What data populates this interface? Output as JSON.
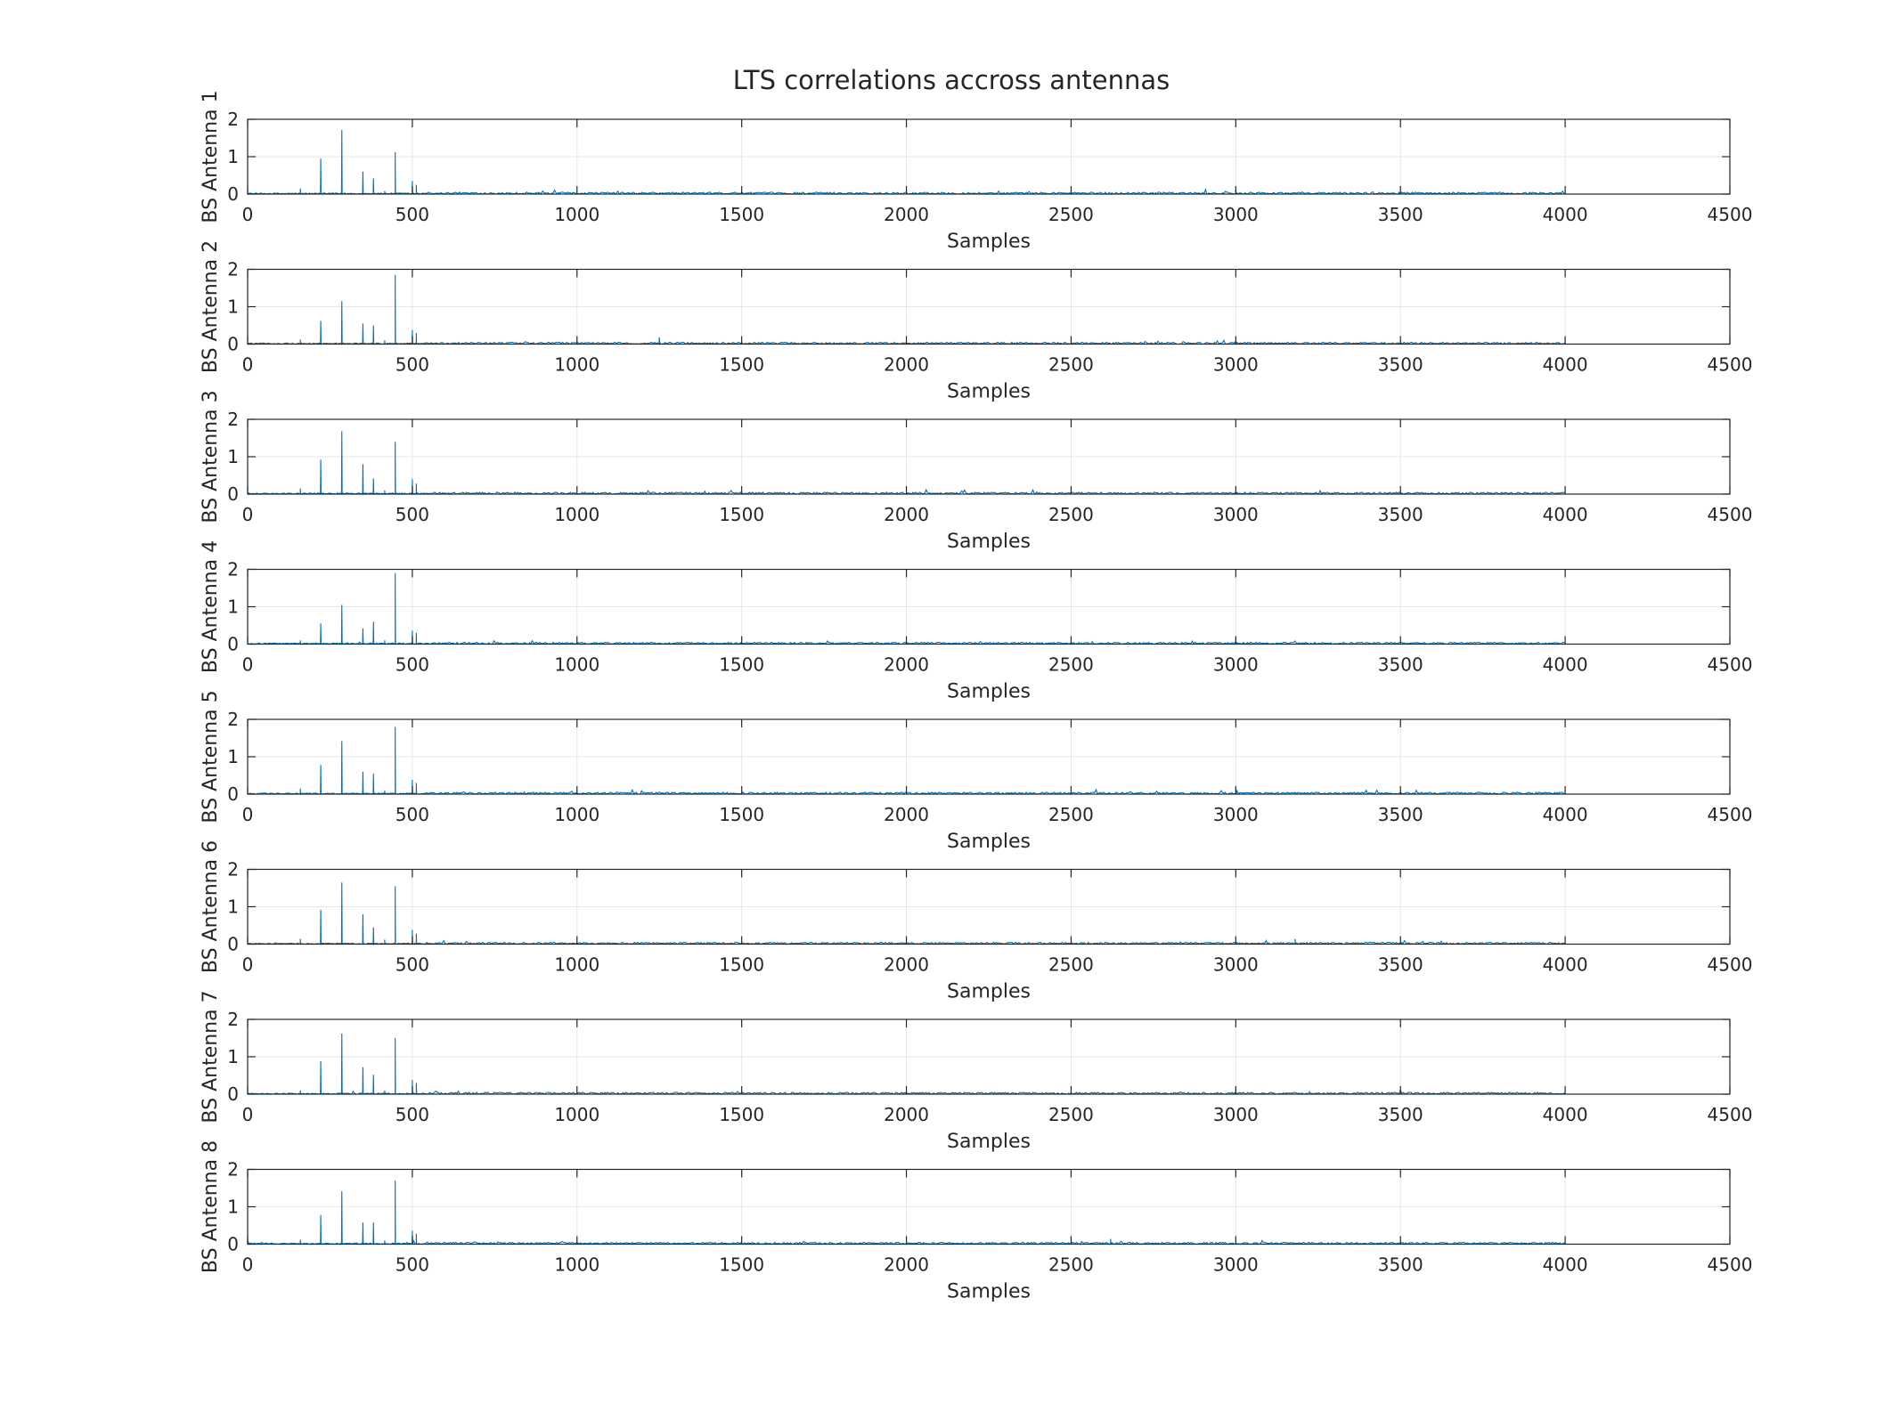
{
  "figure_title": "LTS correlations accross antennas",
  "colors": {
    "line": "#0072BD",
    "axis": "#262626",
    "grid": "#E6E6E6",
    "background": "#FFFFFF"
  },
  "chart_data": [
    {
      "type": "line",
      "xlabel": "Samples",
      "ylabel": "BS Antenna 1",
      "xlim": [
        0,
        4500
      ],
      "ylim": [
        0,
        2
      ],
      "xticks": [
        0,
        500,
        1000,
        1500,
        2000,
        2500,
        3000,
        3500,
        4000,
        4500
      ],
      "yticks": [
        0,
        1,
        2
      ],
      "grid": true,
      "series": [
        {
          "peaks": [
            [
              160,
              0.15
            ],
            [
              222,
              0.95
            ],
            [
              286,
              1.72
            ],
            [
              350,
              0.6
            ],
            [
              382,
              0.42
            ],
            [
              416,
              0.08
            ],
            [
              448,
              1.12
            ],
            [
              500,
              0.35
            ],
            [
              512,
              0.25
            ],
            [
              3000,
              0.12
            ]
          ],
          "noise_level": 0.05,
          "x_end": 4000
        }
      ]
    },
    {
      "type": "line",
      "xlabel": "Samples",
      "ylabel": "BS Antenna 2",
      "xlim": [
        0,
        4500
      ],
      "ylim": [
        0,
        2
      ],
      "xticks": [
        0,
        500,
        1000,
        1500,
        2000,
        2500,
        3000,
        3500,
        4000,
        4500
      ],
      "yticks": [
        0,
        1,
        2
      ],
      "grid": true,
      "series": [
        {
          "peaks": [
            [
              160,
              0.12
            ],
            [
              222,
              0.62
            ],
            [
              286,
              1.15
            ],
            [
              350,
              0.55
            ],
            [
              382,
              0.5
            ],
            [
              416,
              0.1
            ],
            [
              448,
              1.85
            ],
            [
              500,
              0.38
            ],
            [
              512,
              0.3
            ],
            [
              1250,
              0.18
            ],
            [
              3000,
              0.1
            ]
          ],
          "noise_level": 0.05,
          "x_end": 4000
        }
      ]
    },
    {
      "type": "line",
      "xlabel": "Samples",
      "ylabel": "BS Antenna 3",
      "xlim": [
        0,
        4500
      ],
      "ylim": [
        0,
        2
      ],
      "xticks": [
        0,
        500,
        1000,
        1500,
        2000,
        2500,
        3000,
        3500,
        4000,
        4500
      ],
      "yticks": [
        0,
        1,
        2
      ],
      "grid": true,
      "series": [
        {
          "peaks": [
            [
              160,
              0.15
            ],
            [
              222,
              0.92
            ],
            [
              286,
              1.68
            ],
            [
              350,
              0.8
            ],
            [
              382,
              0.42
            ],
            [
              416,
              0.1
            ],
            [
              448,
              1.4
            ],
            [
              500,
              0.4
            ],
            [
              512,
              0.28
            ],
            [
              3000,
              0.1
            ]
          ],
          "noise_level": 0.05,
          "x_end": 4000
        }
      ]
    },
    {
      "type": "line",
      "xlabel": "Samples",
      "ylabel": "BS Antenna 4",
      "xlim": [
        0,
        4500
      ],
      "ylim": [
        0,
        2
      ],
      "xticks": [
        0,
        500,
        1000,
        1500,
        2000,
        2500,
        3000,
        3500,
        4000,
        4500
      ],
      "yticks": [
        0,
        1,
        2
      ],
      "grid": true,
      "series": [
        {
          "peaks": [
            [
              160,
              0.1
            ],
            [
              222,
              0.55
            ],
            [
              286,
              1.05
            ],
            [
              350,
              0.42
            ],
            [
              382,
              0.6
            ],
            [
              416,
              0.1
            ],
            [
              448,
              1.9
            ],
            [
              500,
              0.36
            ],
            [
              512,
              0.3
            ],
            [
              3000,
              0.12
            ]
          ],
          "noise_level": 0.05,
          "x_end": 4000
        }
      ]
    },
    {
      "type": "line",
      "xlabel": "Samples",
      "ylabel": "BS Antenna 5",
      "xlim": [
        0,
        4500
      ],
      "ylim": [
        0,
        2
      ],
      "xticks": [
        0,
        500,
        1000,
        1500,
        2000,
        2500,
        3000,
        3500,
        4000,
        4500
      ],
      "yticks": [
        0,
        1,
        2
      ],
      "grid": true,
      "series": [
        {
          "peaks": [
            [
              160,
              0.15
            ],
            [
              222,
              0.78
            ],
            [
              286,
              1.42
            ],
            [
              350,
              0.6
            ],
            [
              382,
              0.55
            ],
            [
              416,
              0.1
            ],
            [
              448,
              1.8
            ],
            [
              500,
              0.38
            ],
            [
              512,
              0.3
            ],
            [
              3000,
              0.14
            ]
          ],
          "noise_level": 0.05,
          "x_end": 4000
        }
      ]
    },
    {
      "type": "line",
      "xlabel": "Samples",
      "ylabel": "BS Antenna 6",
      "xlim": [
        0,
        4500
      ],
      "ylim": [
        0,
        2
      ],
      "xticks": [
        0,
        500,
        1000,
        1500,
        2000,
        2500,
        3000,
        3500,
        4000,
        4500
      ],
      "yticks": [
        0,
        1,
        2
      ],
      "grid": true,
      "series": [
        {
          "peaks": [
            [
              160,
              0.14
            ],
            [
              222,
              0.92
            ],
            [
              286,
              1.65
            ],
            [
              350,
              0.8
            ],
            [
              382,
              0.45
            ],
            [
              416,
              0.12
            ],
            [
              448,
              1.55
            ],
            [
              500,
              0.38
            ],
            [
              512,
              0.28
            ],
            [
              3180,
              0.14
            ]
          ],
          "noise_level": 0.05,
          "x_end": 4000
        }
      ]
    },
    {
      "type": "line",
      "xlabel": "Samples",
      "ylabel": "BS Antenna 7",
      "xlim": [
        0,
        4500
      ],
      "ylim": [
        0,
        2
      ],
      "xticks": [
        0,
        500,
        1000,
        1500,
        2000,
        2500,
        3000,
        3500,
        4000,
        4500
      ],
      "yticks": [
        0,
        1,
        2
      ],
      "grid": true,
      "series": [
        {
          "peaks": [
            [
              160,
              0.1
            ],
            [
              222,
              0.88
            ],
            [
              286,
              1.62
            ],
            [
              350,
              0.72
            ],
            [
              382,
              0.52
            ],
            [
              416,
              0.1
            ],
            [
              448,
              1.5
            ],
            [
              500,
              0.38
            ],
            [
              512,
              0.3
            ],
            [
              3000,
              0.12
            ]
          ],
          "noise_level": 0.05,
          "x_end": 4000
        }
      ]
    },
    {
      "type": "line",
      "xlabel": "Samples",
      "ylabel": "BS Antenna 8",
      "xlim": [
        0,
        4500
      ],
      "ylim": [
        0,
        2
      ],
      "xticks": [
        0,
        500,
        1000,
        1500,
        2000,
        2500,
        3000,
        3500,
        4000,
        4500
      ],
      "yticks": [
        0,
        1,
        2
      ],
      "grid": true,
      "series": [
        {
          "peaks": [
            [
              160,
              0.12
            ],
            [
              222,
              0.78
            ],
            [
              286,
              1.42
            ],
            [
              350,
              0.58
            ],
            [
              382,
              0.58
            ],
            [
              416,
              0.1
            ],
            [
              448,
              1.7
            ],
            [
              500,
              0.36
            ],
            [
              512,
              0.28
            ],
            [
              2620,
              0.14
            ]
          ],
          "noise_level": 0.05,
          "x_end": 4000
        }
      ]
    }
  ]
}
